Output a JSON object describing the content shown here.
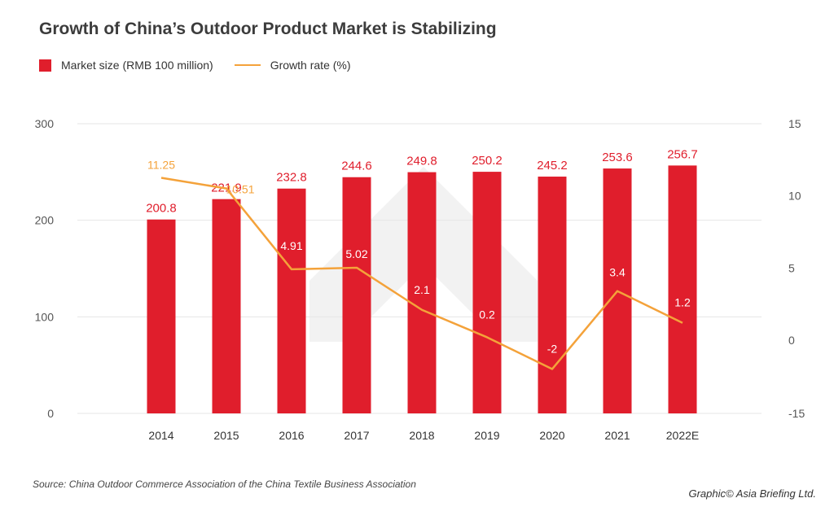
{
  "title": "Growth of China’s Outdoor Product Market is Stabilizing",
  "legend": {
    "bar": "Market size (RMB 100 million)",
    "line": "Growth rate (%)"
  },
  "colors": {
    "bar": "#e01e2c",
    "line": "#f4a23a",
    "bar_label": "#e01e2c",
    "rate_label_on_bar": "#ffffff",
    "rate_label_outside": "#f4a23a",
    "grid": "#e6e6e6",
    "watermark": "#f2f2f2"
  },
  "chart_data": {
    "type": "bar",
    "title": "Growth of China’s Outdoor Product Market is Stabilizing",
    "categories": [
      "2014",
      "2015",
      "2016",
      "2017",
      "2018",
      "2019",
      "2020",
      "2021",
      "2022E"
    ],
    "series": [
      {
        "name": "Market size (RMB 100 million)",
        "type": "bar",
        "axis": "left",
        "values": [
          200.8,
          221.9,
          232.8,
          244.6,
          249.8,
          250.2,
          245.2,
          253.6,
          256.7
        ],
        "labels": [
          "200.8",
          "221.9",
          "232.8",
          "244.6",
          "249.8",
          "250.2",
          "245.2",
          "253.6",
          "256.7"
        ]
      },
      {
        "name": "Growth rate (%)",
        "type": "line",
        "axis": "right",
        "values": [
          11.25,
          10.51,
          4.91,
          5.02,
          2.1,
          0.2,
          -2,
          3.4,
          1.2
        ],
        "labels": [
          "11.25",
          "10.51",
          "4.91",
          "5.02",
          "2.1",
          "0.2",
          "-2",
          "3.4",
          "1.2"
        ]
      }
    ],
    "left_axis": {
      "ticks": [
        0,
        100,
        200,
        300
      ],
      "tick_labels": [
        "0",
        "100",
        "200",
        "300"
      ],
      "ylim": [
        0,
        300
      ]
    },
    "right_axis": {
      "ticks": [
        -15,
        0,
        5,
        10,
        15
      ],
      "tick_labels": [
        "-15",
        "0",
        "5",
        "10",
        "15"
      ],
      "note": "broken axis: -15 at baseline, linear from -5 to 15"
    },
    "grid": true,
    "legend_position": "top-left"
  },
  "footer": {
    "source": "Source: China Outdoor Commerce Association of the China Textile Business Association",
    "credit": "Graphic© Asia Briefing Ltd."
  }
}
